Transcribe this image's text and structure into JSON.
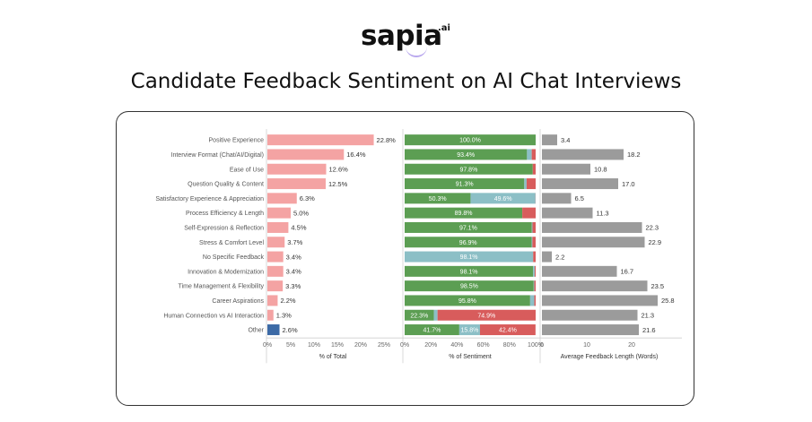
{
  "brand": {
    "name": "sapia",
    "suffix": ".ai"
  },
  "title": "Candidate Feedback Sentiment on AI Chat Interviews",
  "colors": {
    "pink": "#f4a3a3",
    "blue": "#3c6aa6",
    "green": "#5c9e53",
    "teal": "#8cbfc6",
    "red": "#d85c5c",
    "gray": "#9b9b9b"
  },
  "chart_data": [
    {
      "type": "bar",
      "orientation": "horizontal",
      "title": "",
      "xlabel": "% of Total",
      "xlim": [
        0,
        25
      ],
      "ticks": [
        "0%",
        "5%",
        "10%",
        "15%",
        "20%",
        "25%"
      ],
      "categories": [
        "Positive Experience",
        "Interview Format (Chat/AI/Digital)",
        "Ease of Use",
        "Question Quality & Content",
        "Satisfactory Experience & Appreciation",
        "Process Efficiency & Length",
        "Self-Expression & Reflection",
        "Stress & Comfort Level",
        "No Specific Feedback",
        "Innovation & Modernization",
        "Time Management & Flexibility",
        "Career Aspirations",
        "Human Connection vs AI Interaction",
        "Other"
      ],
      "values": [
        22.8,
        16.4,
        12.6,
        12.5,
        6.3,
        5.0,
        4.5,
        3.7,
        3.4,
        3.4,
        3.3,
        2.2,
        1.3,
        2.6
      ],
      "labels": [
        "22.8%",
        "16.4%",
        "12.6%",
        "12.5%",
        "6.3%",
        "5.0%",
        "4.5%",
        "3.7%",
        "3.4%",
        "3.4%",
        "3.3%",
        "2.2%",
        "1.3%",
        "2.6%"
      ],
      "highlight": [
        false,
        false,
        false,
        false,
        false,
        false,
        false,
        false,
        false,
        false,
        false,
        false,
        false,
        true
      ]
    },
    {
      "type": "bar",
      "orientation": "horizontal",
      "stacked": true,
      "xlabel": "% of Sentiment",
      "xlim": [
        0,
        100
      ],
      "ticks": [
        "0%",
        "20%",
        "40%",
        "60%",
        "80%",
        "100%"
      ],
      "series": [
        {
          "name": "Positive",
          "color": "green",
          "values": [
            100.0,
            93.4,
            97.8,
            91.3,
            50.3,
            89.8,
            97.1,
            96.9,
            0.0,
            98.1,
            98.5,
            95.8,
            22.3,
            41.7
          ],
          "labels": [
            "100.0%",
            "93.4%",
            "97.8%",
            "91.3%",
            "50.3%",
            "89.8%",
            "97.1%",
            "96.9%",
            "",
            "98.1%",
            "98.5%",
            "95.8%",
            "22.3%",
            "41.7%"
          ]
        },
        {
          "name": "Neutral",
          "color": "teal",
          "values": [
            0.0,
            3.6,
            0.0,
            1.8,
            49.6,
            0.0,
            0.5,
            0.6,
            98.1,
            1.2,
            0.5,
            3.2,
            2.8,
            15.8
          ],
          "labels": [
            "",
            "",
            "",
            "",
            "49.6%",
            "",
            "",
            "",
            "98.1%",
            "",
            "",
            "",
            "",
            "15.8%"
          ]
        },
        {
          "name": "Negative",
          "color": "red",
          "values": [
            0.0,
            3.0,
            2.2,
            6.9,
            0.1,
            10.2,
            2.4,
            2.5,
            1.9,
            0.7,
            1.0,
            1.0,
            74.9,
            42.4
          ],
          "labels": [
            "",
            "",
            "",
            "",
            "",
            "",
            "",
            "",
            "",
            "",
            "",
            "",
            "74.9%",
            "42.4%"
          ]
        }
      ]
    },
    {
      "type": "bar",
      "orientation": "horizontal",
      "xlabel": "Average Feedback Length (Words)",
      "xlim": [
        0,
        30
      ],
      "ticks": [
        "0",
        "10",
        "20"
      ],
      "tick_values": [
        0,
        10,
        20
      ],
      "values": [
        3.4,
        18.2,
        10.8,
        17.0,
        6.5,
        11.3,
        22.3,
        22.9,
        2.2,
        16.7,
        23.5,
        25.8,
        21.3,
        21.6
      ],
      "labels": [
        "3.4",
        "18.2",
        "10.8",
        "17.0",
        "6.5",
        "11.3",
        "22.3",
        "22.9",
        "2.2",
        "16.7",
        "23.5",
        "25.8",
        "21.3",
        "21.6"
      ]
    }
  ]
}
